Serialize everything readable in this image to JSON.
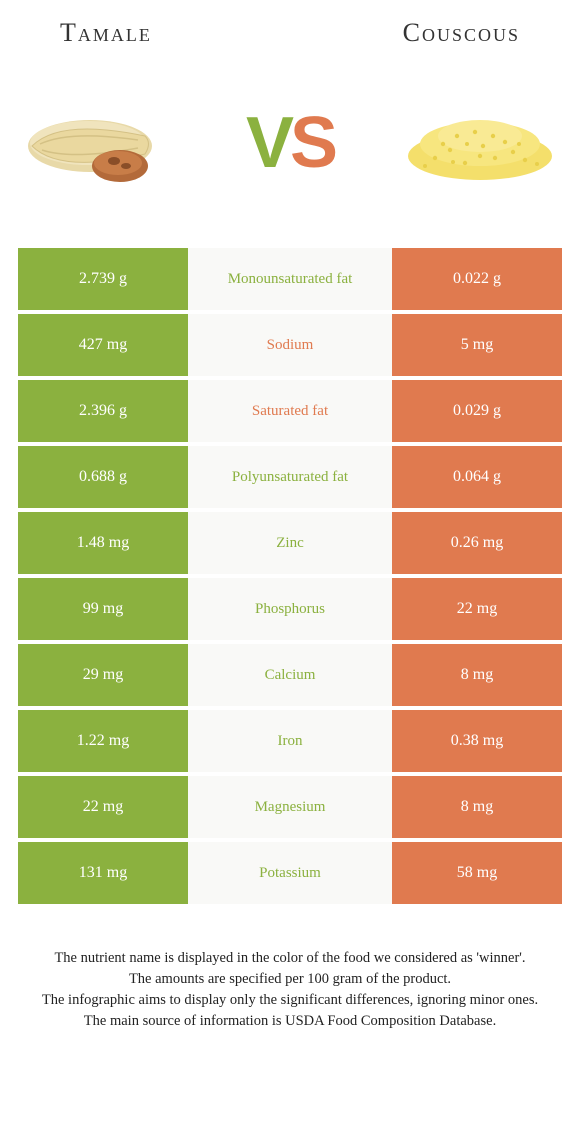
{
  "colors": {
    "left": "#8bb13f",
    "right": "#e07a4f",
    "mid_bg": "#f9f9f7",
    "text": "#333333"
  },
  "header": {
    "left_title": "Tamale",
    "right_title": "Couscous"
  },
  "vs": {
    "v": "V",
    "s": "S"
  },
  "rows": [
    {
      "left": "2.739 g",
      "label": "Monounsaturated fat",
      "right": "0.022 g",
      "winner": "left"
    },
    {
      "left": "427 mg",
      "label": "Sodium",
      "right": "5 mg",
      "winner": "right"
    },
    {
      "left": "2.396 g",
      "label": "Saturated fat",
      "right": "0.029 g",
      "winner": "right"
    },
    {
      "left": "0.688 g",
      "label": "Polyunsaturated fat",
      "right": "0.064 g",
      "winner": "left"
    },
    {
      "left": "1.48 mg",
      "label": "Zinc",
      "right": "0.26 mg",
      "winner": "left"
    },
    {
      "left": "99 mg",
      "label": "Phosphorus",
      "right": "22 mg",
      "winner": "left"
    },
    {
      "left": "29 mg",
      "label": "Calcium",
      "right": "8 mg",
      "winner": "left"
    },
    {
      "left": "1.22 mg",
      "label": "Iron",
      "right": "0.38 mg",
      "winner": "left"
    },
    {
      "left": "22 mg",
      "label": "Magnesium",
      "right": "8 mg",
      "winner": "left"
    },
    {
      "left": "131 mg",
      "label": "Potassium",
      "right": "58 mg",
      "winner": "left"
    }
  ],
  "footer": {
    "line1": "The nutrient name is displayed in the color of the food we considered as 'winner'.",
    "line2": "The amounts are specified per 100 gram of the product.",
    "line3": "The infographic aims to display only the significant differences, ignoring minor ones.",
    "line4": "The main source of information is USDA Food Composition Database."
  }
}
